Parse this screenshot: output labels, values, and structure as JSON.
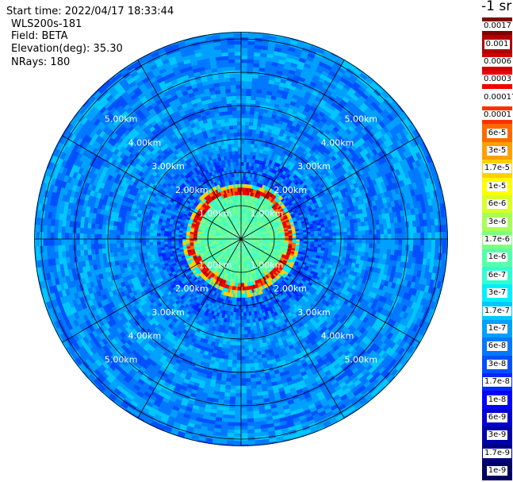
{
  "info": {
    "start_time": "Start time: 2022/04/17 18:33:44",
    "instrument": "WLS200s-181",
    "field": "Field: BETA",
    "elevation": "Elevation(deg): 35.30",
    "nrays": "NRays: 180"
  },
  "colorbar": {
    "unit": "-1 sr",
    "levels": [
      {
        "label": "0.0017",
        "color": "#800000"
      },
      {
        "label": "0.001",
        "color": "#b00000"
      },
      {
        "label": "0.0006",
        "color": "#d00000"
      },
      {
        "label": "0.0003",
        "color": "#f00000"
      },
      {
        "label": "0.00017",
        "color": "#ffffff"
      },
      {
        "label": "0.0001",
        "color": "#ff3000"
      },
      {
        "label": "6e-5",
        "color": "#ff6a00"
      },
      {
        "label": "3e-5",
        "color": "#ffa000"
      },
      {
        "label": "1.7e-5",
        "color": "#ffd000"
      },
      {
        "label": "1e-5",
        "color": "#ffff00"
      },
      {
        "label": "6e-6",
        "color": "#d8ff28"
      },
      {
        "label": "3e-6",
        "color": "#a8ff58"
      },
      {
        "label": "1.7e-6",
        "color": "#80ff80"
      },
      {
        "label": "1e-6",
        "color": "#58ffa8"
      },
      {
        "label": "6e-7",
        "color": "#30ffd0"
      },
      {
        "label": "3e-7",
        "color": "#00f0ff"
      },
      {
        "label": "1.7e-7",
        "color": "#00c8ff"
      },
      {
        "label": "1e-7",
        "color": "#00a0ff"
      },
      {
        "label": "6e-8",
        "color": "#0078ff"
      },
      {
        "label": "3e-8",
        "color": "#0050ff"
      },
      {
        "label": "1.7e-8",
        "color": "#0028ff"
      },
      {
        "label": "1e-8",
        "color": "#0000ff"
      },
      {
        "label": "6e-9",
        "color": "#0000d0"
      },
      {
        "label": "3e-9",
        "color": "#0000a8"
      },
      {
        "label": "1.7e-9",
        "color": "#000080"
      },
      {
        "label": "1e-9",
        "color": "#000060"
      }
    ]
  },
  "chart_data": {
    "type": "heatmap",
    "projection": "polar PPI",
    "field": "BETA",
    "elevation_deg": 35.3,
    "nrays": 180,
    "range_rings_km": [
      1,
      2,
      3,
      4,
      5,
      6
    ],
    "range_labels": [
      "1.00km",
      "2.00km",
      "3.00km",
      "4.00km",
      "5.00km"
    ],
    "spokes_deg": [
      0,
      30,
      60,
      90,
      120,
      150,
      180,
      210,
      240,
      270,
      300,
      330
    ],
    "max_range_km": 6.2,
    "typical_background": "3e-8",
    "near_field_value": "1e-6",
    "ring_peak_range_km": 1.45,
    "ring_peak_value": "0.0003"
  },
  "colors": {
    "background_blue": "#1f6fe0",
    "grid": "#000000"
  }
}
